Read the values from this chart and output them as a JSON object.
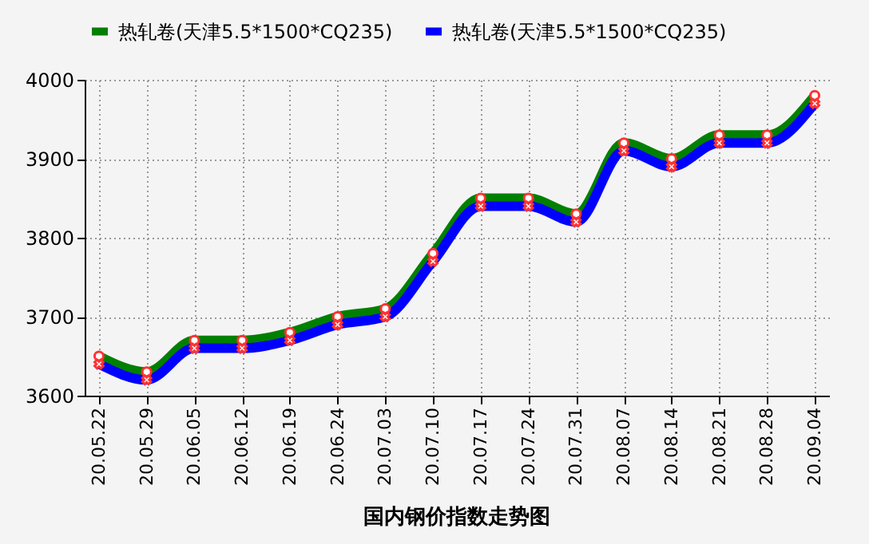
{
  "chart_data": {
    "type": "line",
    "title": "国内钢价指数走势图",
    "categories": [
      "20.05.22",
      "20.05.29",
      "20.06.05",
      "20.06.12",
      "20.06.19",
      "20.06.24",
      "20.07.03",
      "20.07.10",
      "20.07.17",
      "20.07.24",
      "20.07.31",
      "20.08.07",
      "20.08.14",
      "20.08.21",
      "20.08.28",
      "20.09.04"
    ],
    "series": [
      {
        "name": "热轧卷(天津5.5*1500*CQ235)",
        "color": "#008000",
        "marker": "circle",
        "values": [
          3650,
          3630,
          3670,
          3670,
          3680,
          3700,
          3710,
          3780,
          3850,
          3850,
          3830,
          3920,
          3900,
          3930,
          3930,
          3980
        ]
      },
      {
        "name": "热轧卷(天津5.5*1500*CQ235)",
        "color": "#0000ff",
        "marker": "cross",
        "values": [
          3640,
          3620,
          3660,
          3660,
          3670,
          3690,
          3700,
          3770,
          3840,
          3840,
          3820,
          3910,
          3890,
          3920,
          3920,
          3970
        ]
      }
    ],
    "ylim": [
      3600,
      4000
    ],
    "yticks": [
      3600,
      3700,
      3800,
      3900,
      4000
    ],
    "grid": true,
    "legend": "top",
    "line_style": "solid"
  }
}
